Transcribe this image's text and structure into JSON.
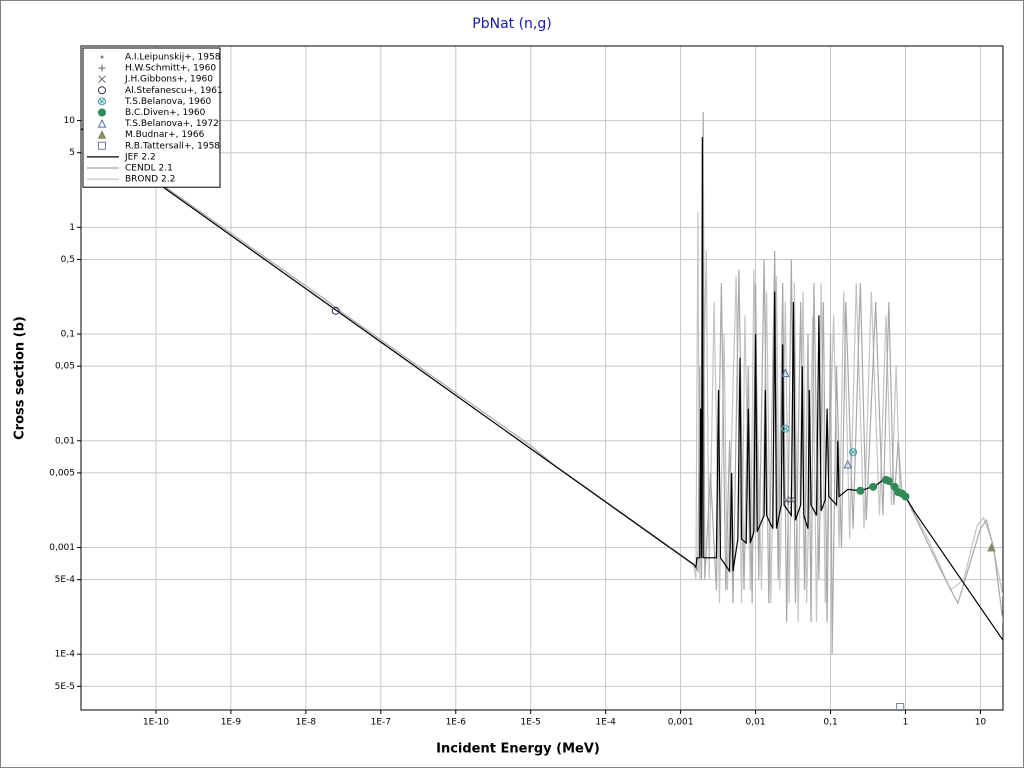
{
  "chart_data": {
    "type": "line",
    "title": "PbNat (n,g)",
    "x_label": "Incident Energy (MeV)",
    "y_label": "Cross section (b)",
    "log_x": true,
    "log_y": true,
    "grid": true,
    "legend": "top-left",
    "xlim": [
      1e-11,
      20
    ],
    "ylim": [
      3e-05,
      50
    ],
    "xticks": [
      {
        "value": 1e-10,
        "label": "1E-10"
      },
      {
        "value": 1e-09,
        "label": "1E-9"
      },
      {
        "value": 1e-08,
        "label": "1E-8"
      },
      {
        "value": 1e-07,
        "label": "1E-7"
      },
      {
        "value": 1e-06,
        "label": "1E-6"
      },
      {
        "value": 1e-05,
        "label": "1E-5"
      },
      {
        "value": 0.0001,
        "label": "1E-4"
      },
      {
        "value": 0.001,
        "label": "0,001"
      },
      {
        "value": 0.01,
        "label": "0,01"
      },
      {
        "value": 0.1,
        "label": "0,1"
      },
      1,
      10
    ],
    "yticks": [
      10,
      5,
      1,
      {
        "value": 0.5,
        "label": "0,5"
      },
      {
        "value": 0.1,
        "label": "0,1"
      },
      {
        "value": 0.05,
        "label": "0,05"
      },
      {
        "value": 0.01,
        "label": "0,01"
      },
      {
        "value": 0.005,
        "label": "0,005"
      },
      {
        "value": 0.001,
        "label": "0,001"
      },
      {
        "value": 0.0005,
        "label": "5E-4"
      },
      {
        "value": 0.0001,
        "label": "1E-4"
      },
      {
        "value": 5e-05,
        "label": "5E-5"
      }
    ],
    "series": [
      {
        "name": "A.I.Leipunskij+, 1958",
        "color": "#808080",
        "marker": "dot",
        "x": [
          0.025
        ],
        "values": [
          0.0028
        ]
      },
      {
        "name": "H.W.Schmitt+, 1960",
        "color": "#606070",
        "marker": "plus",
        "x": [
          0.027
        ],
        "values": [
          0.0027
        ]
      },
      {
        "name": "J.H.Gibbons+, 1960",
        "color": "#606070",
        "marker": "cross",
        "x": [
          0.03
        ],
        "values": [
          0.0028
        ]
      },
      {
        "name": "Al.Stefanescu+, 1961",
        "color": "#303060",
        "marker": "circle",
        "x": [
          2.5e-08
        ],
        "values": [
          0.165
        ]
      },
      {
        "name": "T.S.Belanova, 1960",
        "color": "#40a0a8",
        "marker": "circle-x",
        "x": [
          0.025,
          0.2
        ],
        "values": [
          0.013,
          0.0078
        ]
      },
      {
        "name": "B.C.Diven+, 1960",
        "color": "#2e8b57",
        "marker": "disc",
        "x": [
          0.25,
          0.37,
          0.55,
          0.6,
          0.72,
          0.8,
          0.9,
          1.0
        ],
        "values": [
          0.0034,
          0.0037,
          0.0043,
          0.0042,
          0.0037,
          0.0033,
          0.0032,
          0.003
        ]
      },
      {
        "name": "T.S.Belanova+, 1972",
        "color": "#5070a0",
        "marker": "triangle",
        "x": [
          0.025,
          0.17
        ],
        "values": [
          0.043,
          0.006
        ]
      },
      {
        "name": "M.Budnar+, 1966",
        "color": "#8b8b60",
        "marker": "filled-triangle",
        "x": [
          14
        ],
        "values": [
          0.001
        ]
      },
      {
        "name": "R.B.Tattersall+, 1958",
        "color": "#7080a0",
        "marker": "square",
        "x": [
          0.85
        ],
        "values": [
          3.2e-05
        ]
      },
      {
        "name": "JEF 2.2",
        "color": "#000000",
        "marker": "line",
        "x": [
          1e-11,
          0.0015,
          0.0016,
          0.00165,
          0.0018,
          0.00185,
          0.0019,
          0.00195,
          0.002,
          0.003,
          0.0032,
          0.0034,
          0.0045,
          0.0048,
          0.005,
          0.0058,
          0.0062,
          0.0065,
          0.0075,
          0.008,
          0.0085,
          0.0095,
          0.01,
          0.0105,
          0.013,
          0.0135,
          0.014,
          0.017,
          0.018,
          0.019,
          0.022,
          0.023,
          0.024,
          0.03,
          0.032,
          0.034,
          0.04,
          0.042,
          0.044,
          0.05,
          0.052,
          0.055,
          0.065,
          0.07,
          0.075,
          0.085,
          0.09,
          0.095,
          0.12,
          0.125,
          0.13,
          0.17,
          0.25,
          0.4,
          0.55,
          0.7,
          1,
          1.3,
          20
        ],
        "values": [
          8.4,
          0.00069,
          0.00065,
          0.0008,
          0.0008,
          0.02,
          0.0008,
          7,
          0.0008,
          0.0008,
          0.03,
          0.0008,
          0.0006,
          0.005,
          0.0006,
          0.0012,
          0.06,
          0.0012,
          0.0011,
          0.02,
          0.0011,
          0.0014,
          0.1,
          0.0014,
          0.002,
          0.03,
          0.002,
          0.0015,
          0.25,
          0.0015,
          0.0025,
          0.08,
          0.0025,
          0.002,
          0.2,
          0.0018,
          0.0025,
          0.05,
          0.002,
          0.0015,
          0.03,
          0.0025,
          0.002,
          0.15,
          0.0022,
          0.0028,
          0.02,
          0.003,
          0.0025,
          0.01,
          0.003,
          0.0035,
          0.0034,
          0.0038,
          0.0045,
          0.0035,
          0.003,
          0.0022,
          0.000135
        ]
      },
      {
        "name": "CENDL 2.1",
        "color": "#a8a8a8",
        "marker": "line",
        "x": [
          1e-11,
          2e-08,
          3e-08,
          1e-05,
          2e-05,
          0.0015,
          0.0017,
          0.0018,
          0.0019,
          0.002,
          0.0021,
          0.0025,
          0.003,
          0.0035,
          0.004,
          0.0045,
          0.005,
          0.006,
          0.007,
          0.008,
          0.009,
          0.01,
          0.011,
          0.013,
          0.015,
          0.018,
          0.02,
          0.023,
          0.026,
          0.03,
          0.034,
          0.04,
          0.045,
          0.05,
          0.055,
          0.06,
          0.07,
          0.08,
          0.09,
          0.1,
          0.105,
          0.12,
          0.14,
          0.16,
          0.2,
          0.25,
          0.3,
          0.4,
          0.5,
          0.6,
          0.7,
          0.8,
          0.9,
          1,
          3,
          5,
          10,
          12,
          15,
          20
        ],
        "values": [
          8.6,
          0.2,
          0.16,
          0.009,
          0.006,
          0.0007,
          0.0006,
          0.05,
          0.0005,
          12,
          0.0005,
          0.005,
          0.0004,
          0.3,
          0.0004,
          0.01,
          0.0003,
          0.4,
          0.0004,
          0.05,
          0.0003,
          0.3,
          0.0005,
          0.5,
          0.0003,
          0.6,
          0.0005,
          0.3,
          0.0002,
          0.5,
          0.0003,
          0.2,
          0.0004,
          0.1,
          0.0002,
          0.3,
          0.0005,
          0.2,
          0.0002,
          0.1,
          0.0001,
          0.05,
          0.001,
          0.2,
          0.0015,
          0.3,
          0.0018,
          0.2,
          0.002,
          0.2,
          0.0025,
          0.01,
          0.003,
          0.003,
          0.0006,
          0.0003,
          0.0015,
          0.0018,
          0.001,
          0.0002
        ]
      },
      {
        "name": "BROND 2.2",
        "color": "#c4c4c4",
        "marker": "line",
        "x": [
          1e-11,
          0.0015,
          0.0016,
          0.0017,
          0.0018,
          0.0022,
          0.0024,
          0.0028,
          0.0033,
          0.0038,
          0.0042,
          0.0055,
          0.0065,
          0.0072,
          0.0085,
          0.0095,
          0.012,
          0.014,
          0.016,
          0.019,
          0.021,
          0.025,
          0.028,
          0.033,
          0.037,
          0.043,
          0.048,
          0.058,
          0.065,
          0.075,
          0.085,
          0.11,
          0.13,
          0.15,
          0.18,
          0.22,
          0.28,
          0.35,
          0.45,
          0.55,
          0.65,
          0.75,
          0.85,
          1,
          2,
          4,
          6,
          9,
          11,
          14,
          20
        ],
        "values": [
          8.4,
          0.00069,
          0.0005,
          1.4,
          0.0005,
          0.6,
          0.0005,
          0.2,
          0.0003,
          0.1,
          0.0004,
          0.35,
          0.0003,
          0.15,
          0.0004,
          0.4,
          0.0004,
          0.25,
          0.0003,
          0.35,
          0.0004,
          0.2,
          0.0003,
          0.3,
          0.0002,
          0.25,
          0.0003,
          0.15,
          0.0002,
          0.3,
          0.0003,
          0.15,
          0.001,
          0.25,
          0.0012,
          0.3,
          0.0015,
          0.25,
          0.002,
          0.15,
          0.0025,
          0.05,
          0.003,
          0.003,
          0.0012,
          0.0004,
          0.0005,
          0.0016,
          0.0019,
          0.0012,
          0.00035
        ]
      }
    ]
  }
}
